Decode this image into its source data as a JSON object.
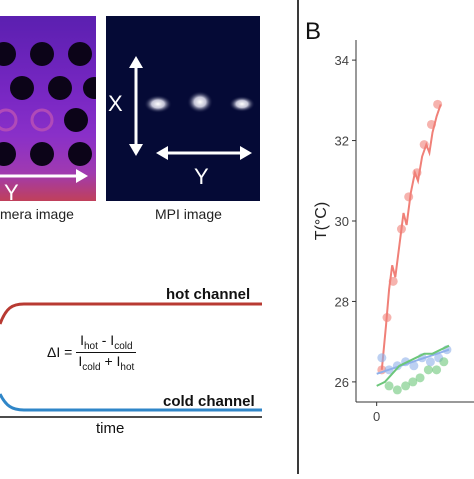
{
  "left_panel": {
    "camera_caption": "mera image",
    "mpi_caption": "MPI image",
    "camera_axis_y": "Y",
    "mpi_axis_x": "X",
    "mpi_axis_y": "Y",
    "hot_channel_label": "hot channel",
    "cold_channel_label": "cold channel",
    "formula_lhs": "ΔI =",
    "formula_num_hot": "I",
    "formula_num_hot_sub": "hot",
    "formula_num_op": " - I",
    "formula_num_cold_sub": "cold",
    "formula_den_cold": "I",
    "formula_den_cold_sub": "cold",
    "formula_den_op": " + I",
    "formula_den_hot_sub": "hot",
    "time_axis_label": "time",
    "colors": {
      "hot": "#b83a32",
      "cold": "#2f86c8"
    }
  },
  "right_panel": {
    "panel_letter": "B"
  },
  "chart_data": {
    "type": "scatter",
    "title": "",
    "xlabel": "",
    "ylabel": "T(°C)",
    "xlim": [
      -2,
      10
    ],
    "ylim": [
      25.5,
      34.5
    ],
    "x_ticks": [
      0
    ],
    "y_ticks": [
      26,
      28,
      30,
      32,
      34
    ],
    "grid": false,
    "series": [
      {
        "color": "#f08078",
        "points": [
          [
            0.5,
            26.3
          ],
          [
            1,
            27.6
          ],
          [
            1.6,
            28.5
          ],
          [
            2.4,
            29.8
          ],
          [
            3.1,
            30.6
          ],
          [
            3.9,
            31.2
          ],
          [
            4.6,
            31.9
          ],
          [
            5.3,
            32.4
          ],
          [
            5.9,
            32.9
          ]
        ],
        "line": [
          [
            0.5,
            26.3
          ],
          [
            0.9,
            27.4
          ],
          [
            1.2,
            28.3
          ],
          [
            1.5,
            28.9
          ],
          [
            1.8,
            28.6
          ],
          [
            2.2,
            29.4
          ],
          [
            2.6,
            30.2
          ],
          [
            2.9,
            29.9
          ],
          [
            3.3,
            30.7
          ],
          [
            3.7,
            31.2
          ],
          [
            4.0,
            31.0
          ],
          [
            4.4,
            31.6
          ],
          [
            4.8,
            31.9
          ],
          [
            5.1,
            31.7
          ],
          [
            5.4,
            32.2
          ],
          [
            5.8,
            32.6
          ],
          [
            6.2,
            32.9
          ]
        ]
      },
      {
        "color": "#8fb0ea",
        "points": [
          [
            0.5,
            26.6
          ],
          [
            1.2,
            26.3
          ],
          [
            2.0,
            26.4
          ],
          [
            2.8,
            26.5
          ],
          [
            3.6,
            26.4
          ],
          [
            4.4,
            26.6
          ],
          [
            5.2,
            26.5
          ],
          [
            6.0,
            26.6
          ],
          [
            6.8,
            26.8
          ]
        ],
        "line": [
          [
            0,
            26.2
          ],
          [
            7,
            26.8
          ]
        ]
      },
      {
        "color": "#6cc67a",
        "points": [
          [
            1.2,
            25.9
          ],
          [
            2.0,
            25.8
          ],
          [
            2.8,
            25.9
          ],
          [
            3.5,
            26.0
          ],
          [
            4.2,
            26.1
          ],
          [
            5.0,
            26.3
          ],
          [
            5.8,
            26.3
          ],
          [
            6.5,
            26.5
          ]
        ],
        "line": [
          [
            0,
            25.9
          ],
          [
            0.8,
            26.0
          ],
          [
            1.5,
            26.2
          ],
          [
            2.2,
            26.4
          ],
          [
            3.0,
            26.5
          ],
          [
            3.8,
            26.6
          ],
          [
            4.6,
            26.7
          ],
          [
            5.4,
            26.7
          ],
          [
            6.2,
            26.8
          ],
          [
            7,
            26.9
          ]
        ]
      }
    ]
  }
}
